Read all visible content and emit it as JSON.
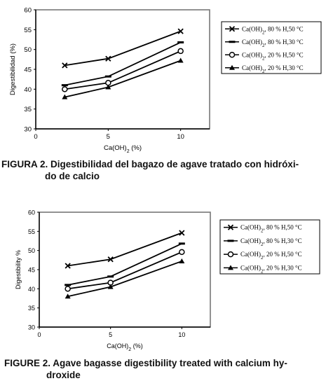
{
  "chart_data": [
    {
      "type": "line",
      "x": [
        2,
        5,
        10
      ],
      "xticks": [
        "0",
        "5",
        "10"
      ],
      "yticks": [
        "30",
        "35",
        "40",
        "45",
        "50",
        "55",
        "60"
      ],
      "xlim": [
        0,
        12
      ],
      "ylim": [
        30,
        60
      ],
      "xlabel_pre": "Ca(OH)",
      "xlabel_sub": "2",
      "xlabel_post": " (%)",
      "ylabel": "Digestibilidad (%)",
      "grid": false,
      "legend_position": "right",
      "series": [
        {
          "name_pre": "Ca(OH)",
          "name_sub": "2",
          "name_post": ", 80 % H,50 °C",
          "marker": "x",
          "values": [
            46,
            47.7,
            54.6
          ]
        },
        {
          "name_pre": "Ca(OH)",
          "name_sub": "2",
          "name_post": ", 80 % H,30 °C",
          "marker": "dash",
          "values": [
            41,
            43.2,
            51.8
          ]
        },
        {
          "name_pre": "Ca(OH)",
          "name_sub": "2",
          "name_post": ", 20 % H,50 °C",
          "marker": "circle",
          "values": [
            40,
            41.6,
            49.6
          ]
        },
        {
          "name_pre": "Ca(OH)",
          "name_sub": "2",
          "name_post": ", 20 % H,30 °C",
          "marker": "triangle",
          "values": [
            38,
            40.5,
            47.2
          ]
        }
      ],
      "caption_line1": "FIGURA 2. Digestibilidad del bagazo de agave tratado con hidróxi-",
      "caption_line2": "do de calcio"
    },
    {
      "type": "line",
      "x": [
        2,
        5,
        10
      ],
      "xticks": [
        "0",
        "5",
        "10"
      ],
      "yticks": [
        "30",
        "35",
        "40",
        "45",
        "50",
        "55",
        "60"
      ],
      "xlim": [
        0,
        12
      ],
      "ylim": [
        30,
        60
      ],
      "xlabel_pre": "Ca(OH)",
      "xlabel_sub": "2",
      "xlabel_post": " (%)",
      "ylabel": "Digestibility %",
      "grid": false,
      "legend_position": "right",
      "series": [
        {
          "name_pre": "Ca(OH)",
          "name_sub": "2",
          "name_post": ", 80 % H,50 °C",
          "marker": "x",
          "values": [
            46,
            47.7,
            54.6
          ]
        },
        {
          "name_pre": "Ca(OH)",
          "name_sub": "2",
          "name_post": ", 80 % H,30 °C",
          "marker": "dash",
          "values": [
            41,
            43.2,
            51.8
          ]
        },
        {
          "name_pre": "Ca(OH)",
          "name_sub": "2",
          "name_post": ", 20 % H,50 °C",
          "marker": "circle",
          "values": [
            40,
            41.6,
            49.6
          ]
        },
        {
          "name_pre": "Ca(OH)",
          "name_sub": "2",
          "name_post": ", 20 % H,30 °C",
          "marker": "triangle",
          "values": [
            38,
            40.5,
            47.2
          ]
        }
      ],
      "caption_line1": "FIGURE 2. Agave bagasse digestibility treated with calcium hy-",
      "caption_line2": "droxide"
    }
  ]
}
